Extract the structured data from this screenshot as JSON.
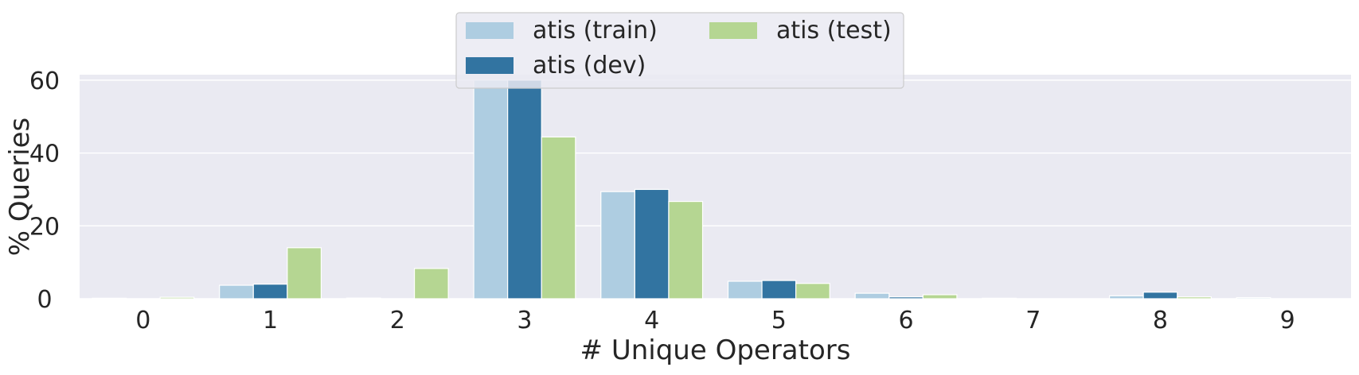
{
  "chart_data": {
    "type": "bar",
    "xlabel": "# Unique Operators",
    "ylabel": "% Queries",
    "categories": [
      "0",
      "1",
      "2",
      "3",
      "4",
      "5",
      "6",
      "7",
      "8",
      "9"
    ],
    "ylim": [
      0,
      61.5
    ],
    "yticks": [
      0,
      20,
      40,
      60
    ],
    "grid": true,
    "legend_position": "top-center",
    "series": [
      {
        "name": "atis (train)",
        "color": "#aecde1",
        "values": [
          0.15,
          3.7,
          0.2,
          60.0,
          29.4,
          4.8,
          1.5,
          0.15,
          0.8,
          0.3
        ]
      },
      {
        "name": "atis (dev)",
        "color": "#3274a1",
        "values": [
          0.0,
          4.0,
          0.0,
          60.0,
          30.0,
          5.0,
          0.5,
          0.0,
          1.8,
          0.0
        ]
      },
      {
        "name": "atis (test)",
        "color": "#b5d692",
        "values": [
          0.4,
          14.0,
          8.3,
          44.4,
          26.7,
          4.2,
          1.1,
          0.0,
          0.5,
          0.0
        ]
      }
    ]
  },
  "style": {
    "plot_background": "#eaeaf2",
    "grid_color": "#ffffff",
    "text_color": "#262626"
  }
}
